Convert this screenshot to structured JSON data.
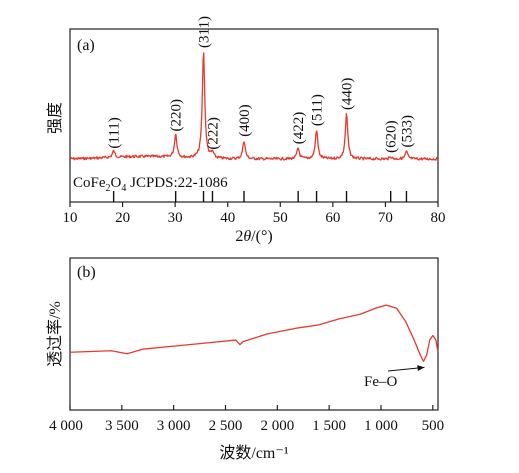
{
  "chart_data": [
    {
      "type": "line",
      "panel_label": "(a)",
      "ylabel": "强度",
      "xlabel_main": "2",
      "xlabel_theta": "θ",
      "xlabel_unit": "/(°)",
      "xlim": [
        10,
        80
      ],
      "xticks": [
        10,
        20,
        30,
        40,
        50,
        60,
        70,
        80
      ],
      "line_color": "#e8392b",
      "reference_label": "CoFe2O4 JCPDS:22-1086",
      "reference_lines": [
        18.3,
        30.1,
        35.4,
        37.1,
        43.1,
        53.4,
        56.9,
        62.6,
        71.0,
        74.0
      ],
      "peaks": [
        {
          "hkl": "(111)",
          "x": 18.3,
          "rel_intensity": 0.06
        },
        {
          "hkl": "(220)",
          "x": 30.1,
          "rel_intensity": 0.22
        },
        {
          "hkl": "(311)",
          "x": 35.4,
          "rel_intensity": 1.0
        },
        {
          "hkl": "(222)",
          "x": 37.1,
          "rel_intensity": 0.05
        },
        {
          "hkl": "(400)",
          "x": 43.1,
          "rel_intensity": 0.17
        },
        {
          "hkl": "(422)",
          "x": 53.4,
          "rel_intensity": 0.1
        },
        {
          "hkl": "(511)",
          "x": 56.9,
          "rel_intensity": 0.27
        },
        {
          "hkl": "(440)",
          "x": 62.6,
          "rel_intensity": 0.42
        },
        {
          "hkl": "(620)",
          "x": 71.0,
          "rel_intensity": 0.02
        },
        {
          "hkl": "(533)",
          "x": 74.0,
          "rel_intensity": 0.07
        }
      ]
    },
    {
      "type": "line",
      "panel_label": "(b)",
      "ylabel": "透过率/%",
      "xlabel": "波数/cm⁻¹",
      "xlim": [
        4000,
        450
      ],
      "xticks": [
        {
          "value": 4000,
          "label": "4 000"
        },
        {
          "value": 3500,
          "label": "3 500"
        },
        {
          "value": 3000,
          "label": "3 000"
        },
        {
          "value": 2500,
          "label": "2 500"
        },
        {
          "value": 2000,
          "label": "2 000"
        },
        {
          "value": 1500,
          "label": "1 500"
        },
        {
          "value": 1000,
          "label": "1 000"
        },
        {
          "value": 500,
          "label": "500"
        }
      ],
      "line_color": "#e8392b",
      "annotation": {
        "text": "Fe–O",
        "x": 580
      },
      "series_points": [
        [
          4000,
          0.38
        ],
        [
          3800,
          0.385
        ],
        [
          3600,
          0.39
        ],
        [
          3450,
          0.37
        ],
        [
          3300,
          0.4
        ],
        [
          3000,
          0.42
        ],
        [
          2700,
          0.44
        ],
        [
          2400,
          0.46
        ],
        [
          2360,
          0.43
        ],
        [
          2330,
          0.45
        ],
        [
          2100,
          0.5
        ],
        [
          1800,
          0.54
        ],
        [
          1600,
          0.56
        ],
        [
          1400,
          0.6
        ],
        [
          1200,
          0.63
        ],
        [
          1050,
          0.67
        ],
        [
          950,
          0.69
        ],
        [
          850,
          0.67
        ],
        [
          760,
          0.58
        ],
        [
          680,
          0.46
        ],
        [
          620,
          0.36
        ],
        [
          590,
          0.32
        ],
        [
          560,
          0.36
        ],
        [
          530,
          0.46
        ],
        [
          500,
          0.49
        ],
        [
          470,
          0.46
        ],
        [
          450,
          0.38
        ]
      ]
    }
  ]
}
